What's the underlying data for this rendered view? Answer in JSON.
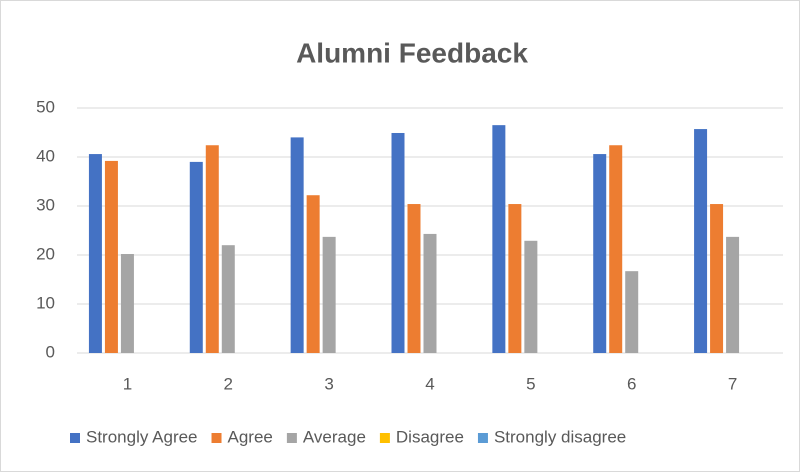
{
  "chart_data": {
    "type": "bar",
    "title": "Alumni Feedback",
    "categories": [
      "1",
      "2",
      "3",
      "4",
      "5",
      "6",
      "7"
    ],
    "series": [
      {
        "name": "Strongly Agree",
        "color": "#4472c4",
        "values": [
          40.6,
          39,
          44,
          44.9,
          46.5,
          40.6,
          45.7
        ]
      },
      {
        "name": "Agree",
        "color": "#ed7d31",
        "values": [
          39.2,
          42.4,
          32.2,
          30.4,
          30.4,
          42.4,
          30.4
        ]
      },
      {
        "name": "Average",
        "color": "#a5a5a5",
        "values": [
          20.2,
          22,
          23.7,
          24.3,
          22.9,
          16.7,
          23.7
        ]
      },
      {
        "name": "Disagree",
        "color": "#ffc000",
        "values": [
          0,
          0,
          0,
          0,
          0,
          0,
          0
        ]
      },
      {
        "name": "Strongly disagree",
        "color": "#5b9bd5",
        "values": [
          0,
          0,
          0,
          0,
          0,
          0,
          0
        ]
      }
    ],
    "ylim": [
      0,
      50
    ],
    "yticks": [
      0,
      10,
      20,
      30,
      40,
      50
    ],
    "grid": true,
    "legend": "bottom"
  }
}
